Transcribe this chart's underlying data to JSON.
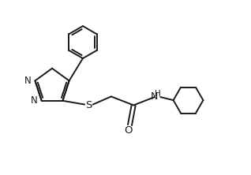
{
  "background_color": "#ffffff",
  "line_color": "#1a1a1a",
  "line_width": 1.4,
  "font_size": 8.5,
  "fig_width": 3.18,
  "fig_height": 2.22,
  "dpi": 100,
  "xlim": [
    0,
    10
  ],
  "ylim": [
    0,
    7
  ]
}
